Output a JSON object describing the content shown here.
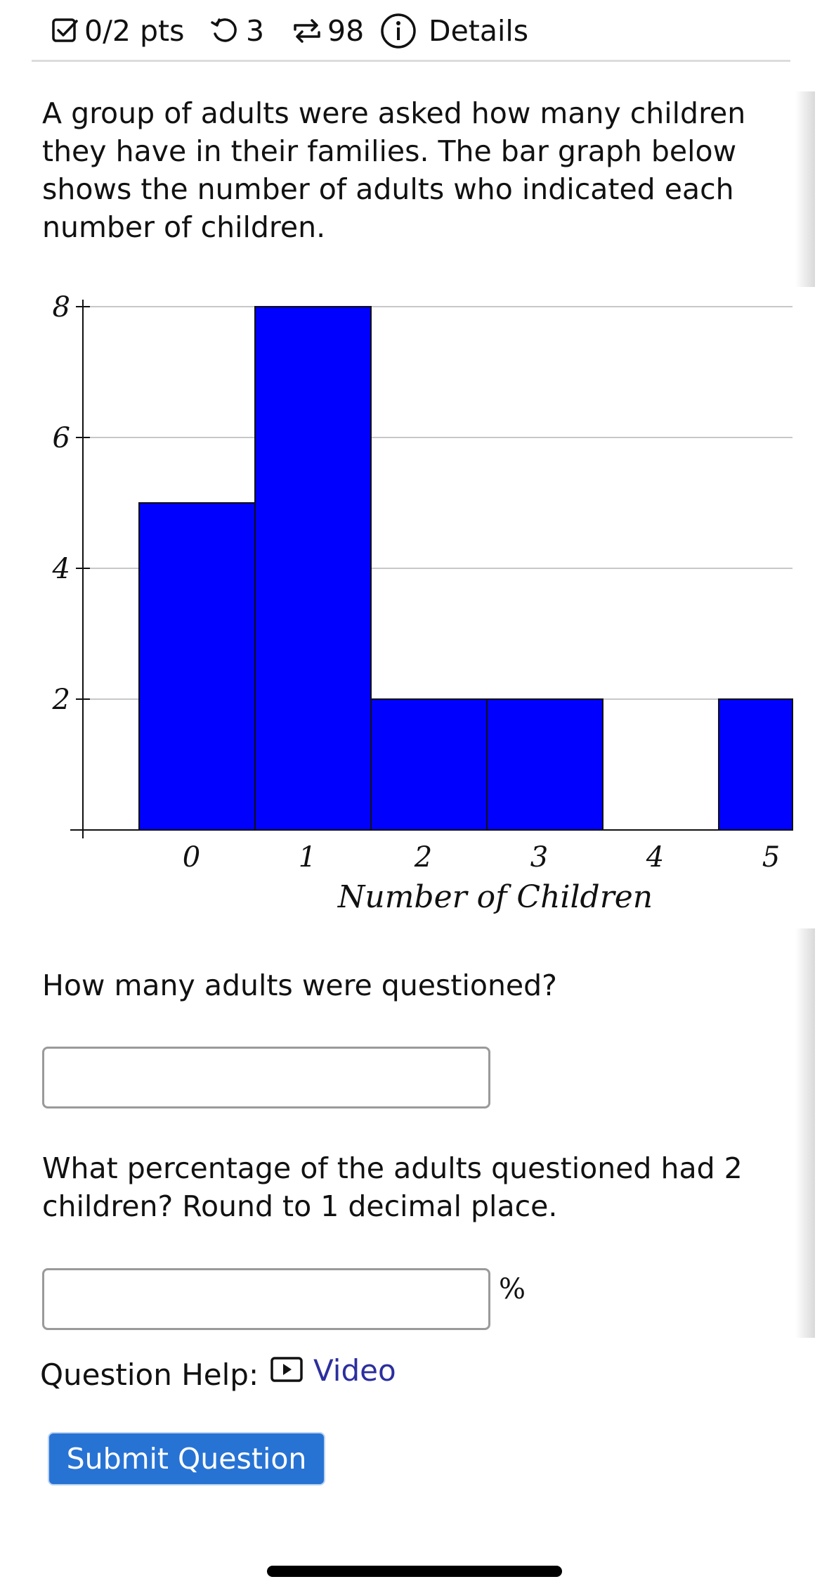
{
  "header": {
    "score": "0/2 pts",
    "retries": "3",
    "attempts": "98",
    "details_label": "Details"
  },
  "question": {
    "intro": "A group of adults were asked how many children they have in their families. The bar graph below shows the number of adults who indicated each number of children.",
    "part1_prompt": "How many adults were questioned?",
    "part1_value": "",
    "part2_prompt": "What percentage of the adults questioned had 2 children? Round to 1 decimal place.",
    "part2_value": "",
    "part2_unit": "%"
  },
  "help": {
    "label": "Question Help:",
    "video_label": "Video"
  },
  "submit_label": "Submit Question",
  "colors": {
    "bar_fill": "#0000ff",
    "submit_bg": "#2773d4",
    "link": "#2c2f9e"
  },
  "chart_data": {
    "type": "bar",
    "categories": [
      "0",
      "1",
      "2",
      "3",
      "4",
      "5"
    ],
    "values": [
      5,
      8,
      2,
      2,
      0,
      2
    ],
    "title": "",
    "xlabel": "Number of Children",
    "ylabel": "",
    "ylim": [
      0,
      8
    ],
    "yticks": [
      "2",
      "4",
      "6",
      "8"
    ],
    "grid": true
  }
}
